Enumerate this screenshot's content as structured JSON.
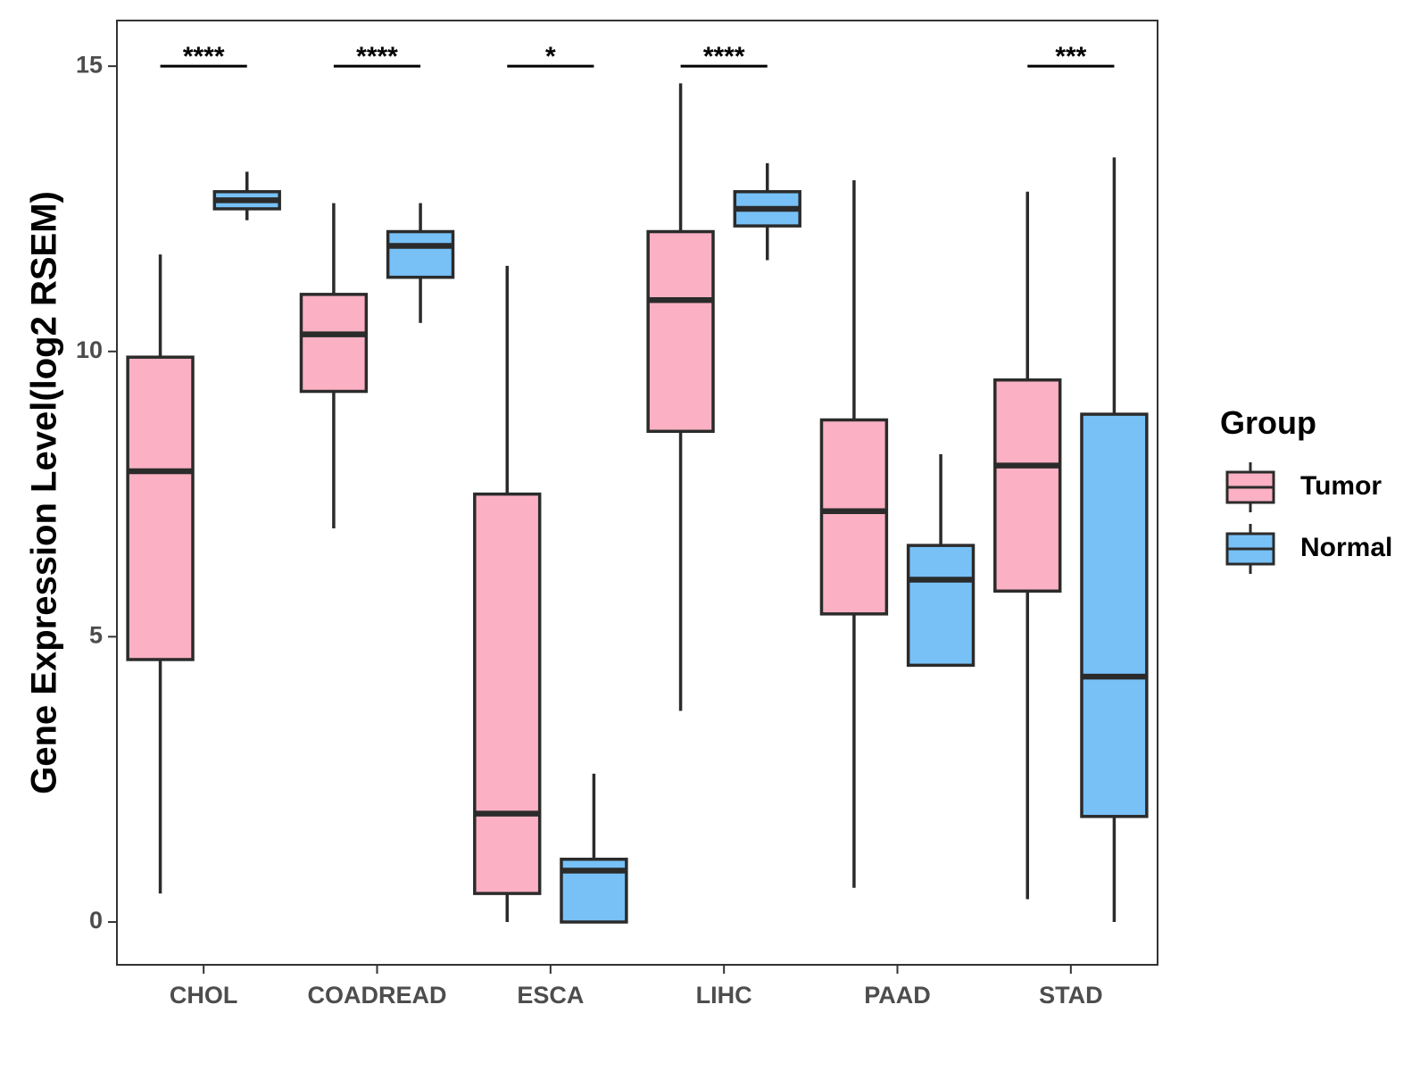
{
  "chart_data": {
    "type": "boxplot",
    "title": "",
    "xlabel": "",
    "ylabel": "Gene Expression Level(log2 RSEM)",
    "ylim": [
      -0.75,
      15.8
    ],
    "yticks": [
      0,
      5,
      10,
      15
    ],
    "ytick_labels": [
      "0",
      "5",
      "10",
      "15"
    ],
    "grid": false,
    "categories": [
      "CHOL",
      "COADREAD",
      "ESCA",
      "LIHC",
      "PAAD",
      "STAD"
    ],
    "significance": [
      "****",
      "****",
      "*",
      "****",
      "",
      "***"
    ],
    "significance_y": 15,
    "series": [
      {
        "name": "Tumor",
        "color": "#fbb1c3",
        "boxes": [
          {
            "min": 0.5,
            "q1": 4.6,
            "median": 7.9,
            "q3": 9.9,
            "max": 11.7
          },
          {
            "min": 6.9,
            "q1": 9.3,
            "median": 10.3,
            "q3": 11.0,
            "max": 12.6
          },
          {
            "min": 0.0,
            "q1": 0.5,
            "median": 1.9,
            "q3": 7.5,
            "max": 11.5
          },
          {
            "min": 3.7,
            "q1": 8.6,
            "median": 10.9,
            "q3": 12.1,
            "max": 14.7
          },
          {
            "min": 0.6,
            "q1": 5.4,
            "median": 7.2,
            "q3": 8.8,
            "max": 13.0
          },
          {
            "min": 0.4,
            "q1": 5.8,
            "median": 8.0,
            "q3": 9.5,
            "max": 12.8
          }
        ]
      },
      {
        "name": "Normal",
        "color": "#77c1f7",
        "boxes": [
          {
            "min": 12.3,
            "q1": 12.5,
            "median": 12.65,
            "q3": 12.8,
            "max": 13.15
          },
          {
            "min": 10.5,
            "q1": 11.3,
            "median": 11.85,
            "q3": 12.1,
            "max": 12.6
          },
          {
            "min": 0.0,
            "q1": 0.0,
            "median": 0.9,
            "q3": 1.1,
            "max": 2.6
          },
          {
            "min": 11.6,
            "q1": 12.2,
            "median": 12.5,
            "q3": 12.8,
            "max": 13.3
          },
          {
            "min": 4.5,
            "q1": 4.5,
            "median": 6.0,
            "q3": 6.6,
            "max": 8.2
          },
          {
            "min": 0.0,
            "q1": 1.85,
            "median": 4.3,
            "q3": 8.9,
            "max": 13.4
          }
        ]
      }
    ],
    "legend": {
      "title": "Group",
      "placement": "right",
      "entries": [
        "Tumor",
        "Normal"
      ]
    }
  }
}
